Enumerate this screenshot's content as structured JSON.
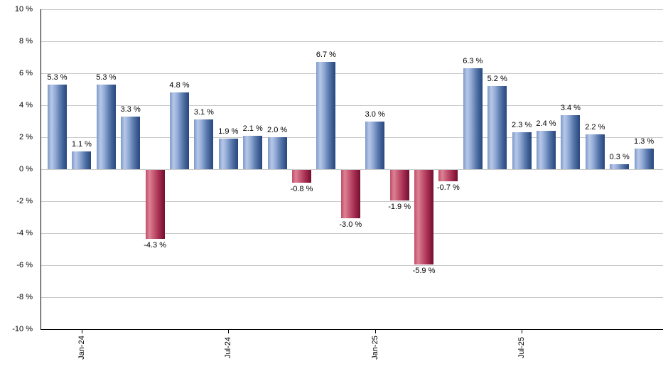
{
  "chart_data": {
    "type": "bar",
    "title": "",
    "xlabel": "",
    "ylabel": "",
    "ylim": [
      -10,
      10
    ],
    "grid": "horizontal",
    "legend": "none",
    "values": [
      5.3,
      1.1,
      5.3,
      3.3,
      -4.3,
      4.8,
      3.1,
      1.9,
      2.1,
      2.0,
      -0.8,
      6.7,
      -3.0,
      3.0,
      -1.9,
      -5.9,
      -0.7,
      6.3,
      5.2,
      2.3,
      2.4,
      3.4,
      2.2,
      0.3,
      1.3
    ],
    "bar_value_labels": [
      "5.3 %",
      "1.1 %",
      "5.3 %",
      "3.3 %",
      "-4.3 %",
      "4.8 %",
      "3.1 %",
      "1.9 %",
      "2.1 %",
      "2.0 %",
      "-0.8 %",
      "6.7 %",
      "-3.0 %",
      "3.0 %",
      "-1.9 %",
      "-5.9 %",
      "-0.7 %",
      "6.3 %",
      "5.2 %",
      "2.3 %",
      "2.4 %",
      "3.4 %",
      "2.2 %",
      "0.3 %",
      "1.3 %"
    ],
    "x_ticks": [
      {
        "label": "Jan-24",
        "bar_index": 1
      },
      {
        "label": "Jul-24",
        "bar_index": 7
      },
      {
        "label": "Jan-25",
        "bar_index": 13
      },
      {
        "label": "Jul-25",
        "bar_index": 19
      }
    ],
    "y_ticks": [
      {
        "value": 10,
        "label": "10 %"
      },
      {
        "value": 8,
        "label": "8 %"
      },
      {
        "value": 6,
        "label": "6 %"
      },
      {
        "value": 4,
        "label": "4 %"
      },
      {
        "value": 2,
        "label": "2 %"
      },
      {
        "value": 0,
        "label": "0 %"
      },
      {
        "value": -2,
        "label": "-2 %"
      },
      {
        "value": -4,
        "label": "-4 %"
      },
      {
        "value": -6,
        "label": "-6 %"
      },
      {
        "value": -8,
        "label": "-8 %"
      },
      {
        "value": -10,
        "label": "-10 %"
      }
    ],
    "colors": {
      "positive_bar": "#6D90C4",
      "negative_bar": "#C04A66",
      "gridline": "#C9C9C9",
      "axis": "#000000",
      "background": "#FFFFFF",
      "label_text": "#000000"
    }
  }
}
